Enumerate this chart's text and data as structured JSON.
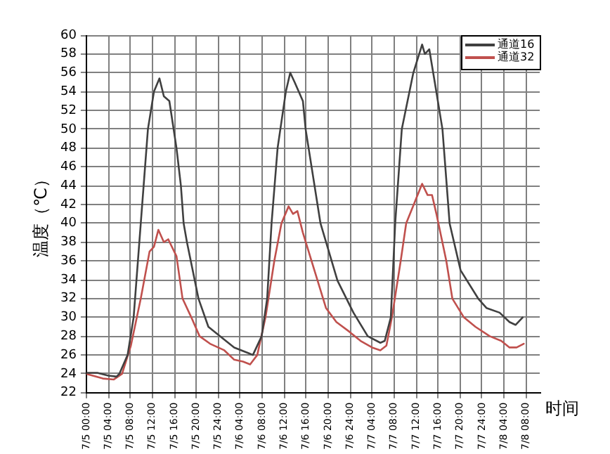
{
  "chart_data": {
    "type": "line",
    "ylabel": "温度（℃）",
    "xlabel": "时间",
    "legend": "top right",
    "grid": true,
    "marker": "none",
    "line_style": "solid",
    "xlim": [
      "--07-05T00:00",
      "--07-08T10:30"
    ],
    "ylim": [
      22,
      60
    ],
    "yticks": [
      22,
      24,
      26,
      28,
      30,
      32,
      34,
      36,
      38,
      40,
      42,
      44,
      46,
      48,
      50,
      52,
      54,
      56,
      58,
      60
    ],
    "xticks": [
      {
        "value": "--07-05T00:00",
        "label": "7/5 00:00"
      },
      {
        "value": "--07-05T04:00",
        "label": "7/5 04:00"
      },
      {
        "value": "--07-05T08:00",
        "label": "7/5 08:00"
      },
      {
        "value": "--07-05T12:00",
        "label": "7/5 12:00"
      },
      {
        "value": "--07-05T16:00",
        "label": "7/5 16:00"
      },
      {
        "value": "--07-05T20:00",
        "label": "7/5 20:00"
      },
      {
        "value": "--07-06T00:00",
        "label": "7/5 24:00"
      },
      {
        "value": "--07-06T04:00",
        "label": "7/6 04:00"
      },
      {
        "value": "--07-06T08:00",
        "label": "7/6 08:00"
      },
      {
        "value": "--07-06T12:00",
        "label": "7/6 12:00"
      },
      {
        "value": "--07-06T16:00",
        "label": "7/6 16:00"
      },
      {
        "value": "--07-06T20:00",
        "label": "7/6 20:00"
      },
      {
        "value": "--07-07T00:00",
        "label": "7/6 24:00"
      },
      {
        "value": "--07-07T04:00",
        "label": "7/7 04:00"
      },
      {
        "value": "--07-07T08:00",
        "label": "7/7 08:00"
      },
      {
        "value": "--07-07T12:00",
        "label": "7/7 12:00"
      },
      {
        "value": "--07-07T16:00",
        "label": "7/7 16:00"
      },
      {
        "value": "--07-07T20:00",
        "label": "7/7 20:00"
      },
      {
        "value": "--07-08T00:00",
        "label": "7/7 24:00"
      },
      {
        "value": "--07-08T04:00",
        "label": "7/8 04:00"
      },
      {
        "value": "--07-08T08:00",
        "label": "7/8 08:00"
      }
    ],
    "series": [
      {
        "name": "通道16",
        "color": "#404040",
        "x": [
          "--07-05T00:00",
          "--07-05T02:00",
          "--07-05T04:00",
          "--07-05T05:30",
          "--07-05T06:00",
          "--07-05T07:30",
          "--07-05T08:36",
          "--07-05T09:54",
          "--07-05T11:12",
          "--07-05T12:18",
          "--07-05T13:18",
          "--07-05T14:06",
          "--07-05T15:06",
          "--07-05T16:24",
          "--07-05T17:12",
          "--07-05T17:42",
          "--07-05T18:18",
          "--07-05T20:24",
          "--07-05T22:12",
          "--07-06T00:18",
          "--07-06T02:54",
          "--07-06T05:30",
          "--07-06T06:18",
          "--07-06T07:54",
          "--07-06T08:54",
          "--07-06T09:42",
          "--07-06T10:48",
          "--07-06T12:18",
          "--07-06T13:06",
          "--07-06T13:54",
          "--07-06T15:24",
          "--07-06T15:54",
          "--07-06T18:36",
          "--07-06T21:42",
          "--07-07T00:36",
          "--07-07T03:12",
          "--07-07T05:30",
          "--07-07T06:18",
          "--07-07T07:24",
          "--07-07T08:12",
          "--07-07T09:24",
          "--07-07T11:30",
          "--07-07T13:06",
          "--07-07T13:36",
          "--07-07T14:24",
          "--07-07T15:24",
          "--07-07T16:48",
          "--07-07T18:06",
          "--07-07T20:06",
          "--07-07T23:18",
          "--07-08T00:48",
          "--07-08T03:12",
          "--07-08T05:00",
          "--07-08T06:06",
          "--07-08T07:24"
        ],
        "values": [
          24.1,
          24.1,
          23.8,
          23.7,
          24,
          26,
          30,
          40,
          50,
          54,
          55.4,
          53.5,
          53,
          48,
          44,
          40,
          38,
          32,
          29,
          28,
          26.8,
          26.2,
          26,
          28,
          32,
          40,
          48,
          54,
          56,
          55,
          53,
          50,
          40,
          33.9,
          30.5,
          28,
          27.3,
          27.5,
          30,
          40,
          50,
          56,
          59,
          58,
          58.5,
          55,
          50,
          40,
          35,
          32,
          31,
          30.5,
          29.5,
          29.2,
          30
        ]
      },
      {
        "name": "通道32",
        "color": "#c0504d",
        "x": [
          "--07-05T00:00",
          "--07-05T03:00",
          "--07-05T05:00",
          "--07-05T06:30",
          "--07-05T08:06",
          "--07-05T09:54",
          "--07-05T11:30",
          "--07-05T12:18",
          "--07-05T13:06",
          "--07-05T14:06",
          "--07-05T14:54",
          "--07-05T16:24",
          "--07-05T17:30",
          "--07-05T19:06",
          "--07-05T20:36",
          "--07-05T22:30",
          "--07-06T01:06",
          "--07-06T02:54",
          "--07-06T04:30",
          "--07-06T05:48",
          "--07-06T07:06",
          "--07-06T08:36",
          "--07-06T10:12",
          "--07-06T11:30",
          "--07-06T12:48",
          "--07-06T13:36",
          "--07-06T14:24",
          "--07-06T15:24",
          "--07-06T17:30",
          "--07-06T19:36",
          "--07-06T21:30",
          "--07-06T23:48",
          "--07-07T01:54",
          "--07-07T04:00",
          "--07-07T05:30",
          "--07-07T06:36",
          "--07-07T07:36",
          "--07-07T09:12",
          "--07-07T10:12",
          "--07-07T13:06",
          "--07-07T14:06",
          "--07-07T14:54",
          "--07-07T15:42",
          "--07-07T17:30",
          "--07-07T18:36",
          "--07-07T20:42",
          "--07-07T22:48",
          "--07-08T01:24",
          "--07-08T03:30",
          "--07-08T05:00",
          "--07-08T06:18",
          "--07-08T07:36"
        ],
        "values": [
          24,
          23.5,
          23.4,
          24,
          27,
          32,
          37,
          37.5,
          39.3,
          38,
          38.3,
          36.5,
          32,
          30,
          28,
          27.2,
          26.5,
          25.5,
          25.3,
          25,
          26,
          30,
          36,
          40,
          41.8,
          41,
          41.3,
          39,
          35,
          31,
          29.5,
          28.5,
          27.5,
          26.8,
          26.5,
          27,
          30,
          36,
          40,
          44.2,
          43,
          43,
          41,
          36,
          32,
          30,
          29,
          28,
          27.5,
          26.8,
          26.8,
          27.2
        ]
      }
    ]
  }
}
